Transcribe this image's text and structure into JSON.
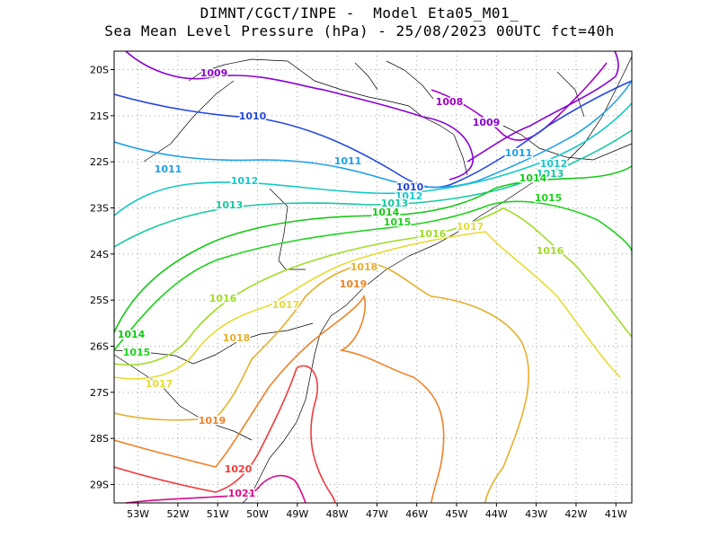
{
  "title": {
    "line1": "DIMNT/CGCT/INPE -  Model Eta05_M01_",
    "line2": "Sea Mean Level Pressure (hPa) - 25/08/2023 00UTC fct=40h"
  },
  "axes": {
    "lon_range": [
      -53.6,
      -40.6
    ],
    "lat_range": [
      -29.4,
      -19.6
    ],
    "lon_ticks": [
      "53W",
      "52W",
      "51W",
      "50W",
      "49W",
      "48W",
      "47W",
      "46W",
      "45W",
      "44W",
      "43W",
      "42W",
      "41W"
    ],
    "lat_ticks": [
      "20S",
      "21S",
      "22S",
      "23S",
      "24S",
      "25S",
      "26S",
      "27S",
      "28S",
      "29S"
    ],
    "grid": true
  },
  "isobars": [
    {
      "label": "1008",
      "color": "#a000c8"
    },
    {
      "label": "1009",
      "color": "#8a00d4"
    },
    {
      "label": "1010",
      "color": "#2346e0"
    },
    {
      "label": "1011",
      "color": "#1ea0e8"
    },
    {
      "label": "1012",
      "color": "#14c8c8"
    },
    {
      "label": "1013",
      "color": "#14c8a0"
    },
    {
      "label": "1014",
      "color": "#14c814"
    },
    {
      "label": "1015",
      "color": "#1ed21e"
    },
    {
      "label": "1016",
      "color": "#a0dc28"
    },
    {
      "label": "1017",
      "color": "#e6dc32"
    },
    {
      "label": "1018",
      "color": "#e6af2d"
    },
    {
      "label": "1019",
      "color": "#f08228"
    },
    {
      "label": "1020",
      "color": "#f03c3c"
    },
    {
      "label": "1021",
      "color": "#dc0a8c"
    }
  ],
  "coastline_color": "#000000",
  "grid_color": "#a0a0a0"
}
